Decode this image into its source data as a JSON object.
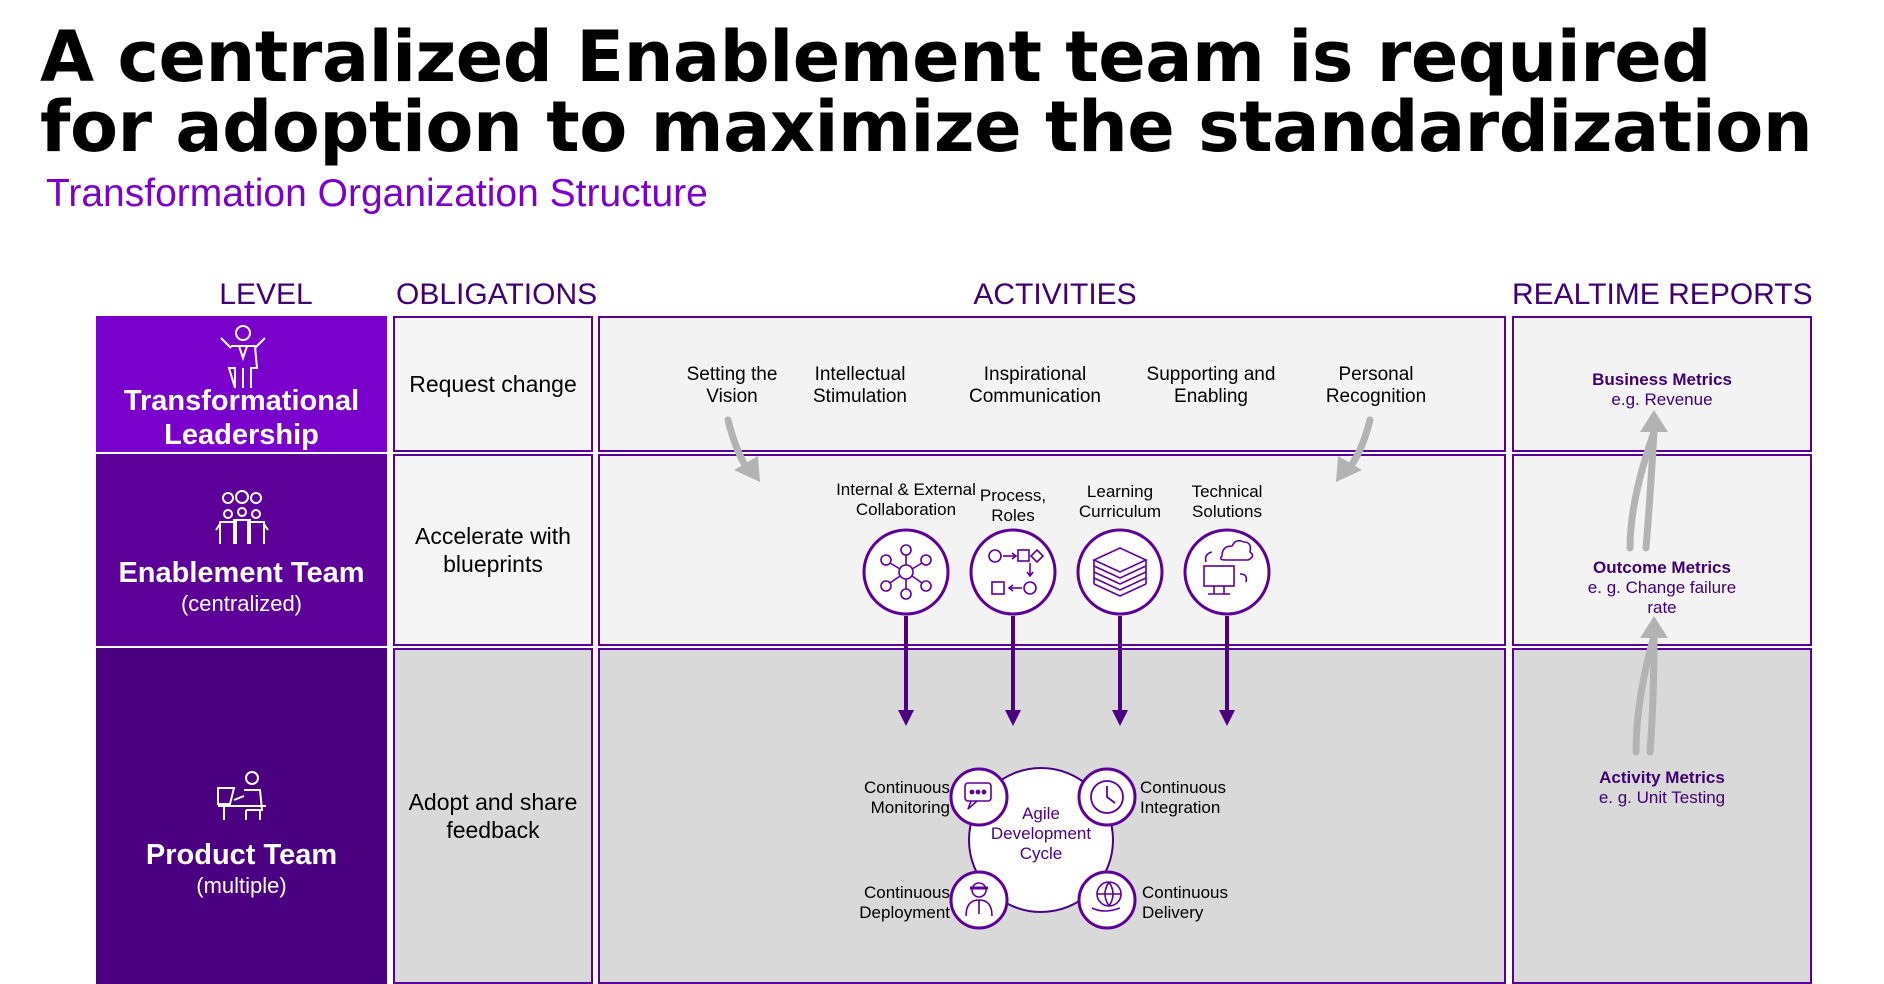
{
  "title": {
    "line1": "A centralized Enablement team is required",
    "line2": "for adoption to maximize the standardization"
  },
  "subtitle": "Transformation Organization Structure",
  "columns": {
    "level": "LEVEL",
    "obligations": "OBLIGATIONS",
    "activities": "ACTIVITIES",
    "reports": "REALTIME REPORTS"
  },
  "levels": [
    {
      "name_line1": "Transformational",
      "name_line2": "Leadership",
      "icon": "leader-person-icon"
    },
    {
      "name": "Enablement Team",
      "sub": "(centralized)",
      "icon": "team-gears-icon"
    },
    {
      "name": "Product Team",
      "sub": "(multiple)",
      "icon": "person-at-desk-icon"
    }
  ],
  "obligations": {
    "row1": "Request change",
    "row2_line1": "Accelerate with",
    "row2_line2": "blueprints",
    "row3_line1": "Adopt and share",
    "row3_line2": "feedback"
  },
  "leadership_activities": [
    {
      "l1": "Setting the",
      "l2": "Vision"
    },
    {
      "l1": "Intellectual",
      "l2": "Stimulation"
    },
    {
      "l1": "Inspirational",
      "l2": "Communication"
    },
    {
      "l1": "Supporting and",
      "l2": "Enabling"
    },
    {
      "l1": "Personal",
      "l2": "Recognition"
    }
  ],
  "enablement_activities": [
    {
      "l1": "Internal & External",
      "l2": "Collaboration",
      "icon": "network-icon"
    },
    {
      "l1": "Process,",
      "l2": "Roles",
      "icon": "process-flow-icon"
    },
    {
      "l1": "Learning",
      "l2": "Curriculum",
      "icon": "books-icon"
    },
    {
      "l1": "Technical",
      "l2": "Solutions",
      "icon": "cloud-computer-icon"
    }
  ],
  "cycle": {
    "center_l1": "Agile",
    "center_l2": "Development",
    "center_l3": "Cycle",
    "monitoring_l1": "Continuous",
    "monitoring_l2": "Monitoring",
    "integration_l1": "Continuous",
    "integration_l2": "Integration",
    "deployment_l1": "Continuous",
    "deployment_l2": "Deployment",
    "delivery_l1": "Continuous",
    "delivery_l2": "Delivery"
  },
  "reports": {
    "business": {
      "name": "Business Metrics",
      "example": "e.g. Revenue"
    },
    "outcome": {
      "name": "Outcome Metrics",
      "example_l1": "e. g. Change failure",
      "example_l2": "rate"
    },
    "activity": {
      "name": "Activity Metrics",
      "example": "e. g. Unit Testing"
    }
  },
  "colors": {
    "purple_light": "#7a00cc",
    "purple_mid": "#5c0099",
    "purple_dark": "#4a0080",
    "grey_light": "#f3f3f3",
    "grey_dark": "#d9d9d9"
  }
}
